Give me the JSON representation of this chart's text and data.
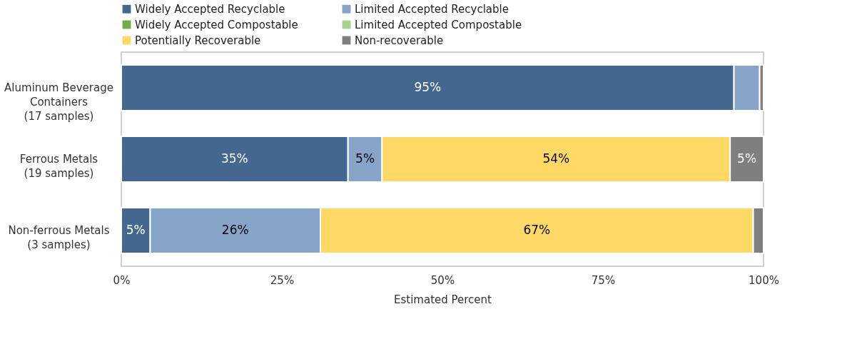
{
  "chart_data": {
    "type": "bar",
    "orientation": "horizontal",
    "stacked": true,
    "categories": [
      "Aluminum Beverage\nContainers\n(17 samples)",
      "Ferrous Metals\n(19 samples)",
      "Non-ferrous Metals\n(3 samples)"
    ],
    "series": [
      {
        "name": "Widely Accepted Recyclable",
        "color": "#44678f",
        "values": [
          95.4,
          35.3,
          4.5
        ],
        "value_labels": [
          "95%",
          "35%",
          "5%"
        ]
      },
      {
        "name": "Limited Accepted Recyclable",
        "color": "#86a5c8",
        "values": [
          4.0,
          5.3,
          26.5
        ],
        "value_labels": [
          null,
          "5%",
          "26%"
        ]
      },
      {
        "name": "Widely Accepted Compostable",
        "color": "#70ad47",
        "values": [
          0,
          0,
          0
        ]
      },
      {
        "name": "Limited Accepted Compostable",
        "color": "#a9d18e",
        "values": [
          0,
          0,
          0
        ]
      },
      {
        "name": "Potentially Recoverable",
        "color": "#ffd966",
        "values": [
          0,
          54.2,
          67.4
        ],
        "value_labels": [
          null,
          "54%",
          "67%"
        ]
      },
      {
        "name": "Non-recoverable",
        "color": "#7f7f7f",
        "values": [
          0.6,
          5.2,
          1.6
        ],
        "value_labels": [
          null,
          "5%",
          null
        ]
      }
    ],
    "xlabel": "Estimated Percent",
    "xlim": [
      0,
      100
    ],
    "xticks": [
      {
        "value": 0,
        "label": "0%"
      },
      {
        "value": 25,
        "label": "25%"
      },
      {
        "value": 50,
        "label": "50%"
      },
      {
        "value": 75,
        "label": "75%"
      },
      {
        "value": 100,
        "label": "100%"
      }
    ],
    "legend": "top",
    "grid": false
  }
}
